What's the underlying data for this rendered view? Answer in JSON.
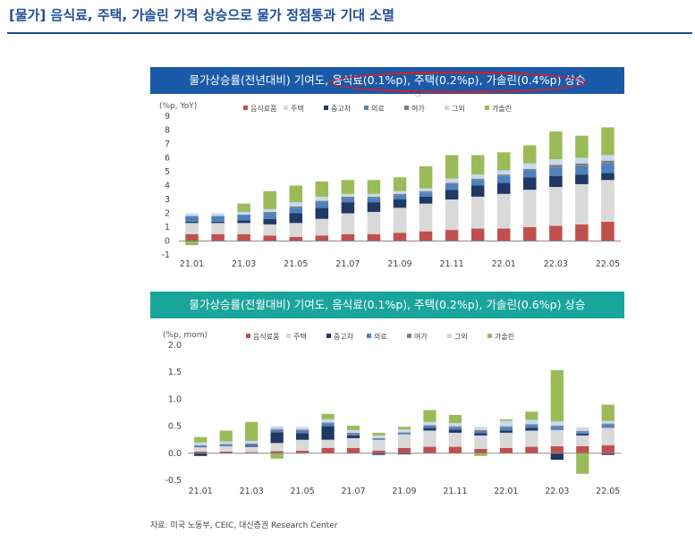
{
  "header": {
    "title": "[물가] 음식료, 주택, 가솔린 가격 상승으로 물가 정점통과 기대 소멸",
    "source": "자료: 미국 노동부, CEIC, 대신증권 Research Center"
  },
  "colors": {
    "title": "#1f4e9a",
    "banner1": "#1b5aa8",
    "banner2": "#1aa59c",
    "highlight": "#e41a1c",
    "series": [
      "#c0504d",
      "#d9d9d9",
      "#1f3864",
      "#4f81bd",
      "#7f7f7f",
      "#c6d9f0",
      "#9bbb59"
    ]
  },
  "chart_data": [
    {
      "type": "bar",
      "stacked": true,
      "banner": "물가상승률(전년대비) 기여도, 음식료(0.1%p), 주택(0.2%p), 가솔린(0.4%p) 상승",
      "ylabel": "(%p, YoY)",
      "ylim": [
        -1,
        9
      ],
      "yticks": [
        -1,
        0,
        1,
        2,
        3,
        4,
        5,
        6,
        7,
        8,
        9
      ],
      "ytick_labels": [
        "-1",
        "0",
        "1",
        "2",
        "3",
        "4",
        "5",
        "6",
        "7",
        "8",
        "9"
      ],
      "categories": [
        "21.01",
        "21.02",
        "21.03",
        "21.04",
        "21.05",
        "21.06",
        "21.07",
        "21.08",
        "21.09",
        "21.10",
        "21.11",
        "21.12",
        "22.01",
        "22.02",
        "22.03",
        "22.04",
        "22.05"
      ],
      "xtick_labels": [
        "21.01",
        "21.03",
        "21.05",
        "21.07",
        "21.09",
        "21.11",
        "22.01",
        "22.03",
        "22.05"
      ],
      "legend": [
        "음식료품",
        "주택",
        "중고차",
        "의료",
        "여가",
        "그외",
        "가솔린"
      ],
      "series": [
        {
          "name": "음식료품",
          "values": [
            0.5,
            0.5,
            0.5,
            0.4,
            0.3,
            0.4,
            0.5,
            0.5,
            0.6,
            0.7,
            0.8,
            0.9,
            0.9,
            1.0,
            1.1,
            1.2,
            1.4
          ]
        },
        {
          "name": "주택",
          "values": [
            0.8,
            0.8,
            0.8,
            0.8,
            1.0,
            1.2,
            1.5,
            1.6,
            1.8,
            2.0,
            2.2,
            2.3,
            2.5,
            2.7,
            2.8,
            2.9,
            3.0
          ]
        },
        {
          "name": "중고차",
          "values": [
            0.1,
            0.1,
            0.2,
            0.4,
            0.7,
            0.8,
            0.8,
            0.7,
            0.6,
            0.5,
            0.7,
            0.8,
            0.8,
            0.9,
            0.8,
            0.7,
            0.5
          ]
        },
        {
          "name": "의료",
          "values": [
            0.4,
            0.4,
            0.4,
            0.4,
            0.4,
            0.4,
            0.3,
            0.3,
            0.3,
            0.3,
            0.4,
            0.4,
            0.5,
            0.5,
            0.6,
            0.6,
            0.7
          ]
        },
        {
          "name": "여가",
          "values": [
            0.0,
            0.0,
            0.0,
            0.1,
            0.1,
            0.1,
            0.1,
            0.1,
            0.1,
            0.1,
            0.1,
            0.1,
            0.1,
            0.1,
            0.2,
            0.2,
            0.2
          ]
        },
        {
          "name": "그외",
          "values": [
            0.2,
            0.2,
            0.2,
            0.2,
            0.3,
            0.3,
            0.2,
            0.2,
            0.2,
            0.2,
            0.3,
            0.3,
            0.3,
            0.4,
            0.4,
            0.4,
            0.4
          ]
        },
        {
          "name": "가솔린",
          "values": [
            -0.3,
            0.0,
            0.6,
            1.3,
            1.2,
            1.1,
            1.0,
            1.0,
            1.0,
            1.6,
            1.7,
            1.4,
            1.3,
            1.3,
            2.0,
            1.6,
            2.0
          ]
        }
      ]
    },
    {
      "type": "bar",
      "stacked": true,
      "banner": "물가상승률(전월대비) 기여도, 음식료(0.1%p), 주택(0.2%p), 가솔린(0.6%p) 상승",
      "ylabel": "(%p, mom)",
      "ylim": [
        -0.5,
        2.0
      ],
      "yticks": [
        -0.5,
        0,
        0.5,
        1.0,
        1.5,
        2.0
      ],
      "ytick_labels": [
        "-0.5",
        "0.0",
        "0.5",
        "1.0",
        "1.5",
        "2.0"
      ],
      "categories": [
        "21.01",
        "21.02",
        "21.03",
        "21.04",
        "21.05",
        "21.06",
        "21.07",
        "21.08",
        "21.09",
        "21.10",
        "21.11",
        "21.12",
        "22.01",
        "22.02",
        "22.03",
        "22.04",
        "22.05"
      ],
      "xtick_labels": [
        "21.01",
        "21.03",
        "21.05",
        "21.07",
        "21.09",
        "21.11",
        "22.01",
        "22.03",
        "22.05"
      ],
      "legend": [
        "음식료품",
        "주택",
        "중고차",
        "의료",
        "여가",
        "그외",
        "가솔린"
      ],
      "series": [
        {
          "name": "음식료품",
          "values": [
            0.03,
            0.03,
            0.02,
            0.04,
            0.05,
            0.1,
            0.1,
            0.05,
            0.1,
            0.12,
            0.12,
            0.08,
            0.1,
            0.12,
            0.13,
            0.13,
            0.15
          ]
        },
        {
          "name": "주택",
          "values": [
            0.08,
            0.1,
            0.1,
            0.15,
            0.2,
            0.15,
            0.18,
            0.2,
            0.25,
            0.3,
            0.26,
            0.25,
            0.28,
            0.3,
            0.3,
            0.2,
            0.32
          ]
        },
        {
          "name": "중고차",
          "values": [
            -0.05,
            0.0,
            0.02,
            0.2,
            0.12,
            0.25,
            0.05,
            -0.03,
            -0.02,
            0.05,
            0.06,
            0.04,
            0.04,
            0.05,
            -0.12,
            0.03,
            -0.03
          ]
        },
        {
          "name": "의료",
          "values": [
            0.03,
            0.03,
            0.03,
            0.04,
            0.05,
            0.05,
            0.03,
            0.02,
            0.03,
            0.04,
            0.04,
            0.04,
            0.06,
            0.05,
            0.06,
            0.03,
            0.06
          ]
        },
        {
          "name": "여가",
          "values": [
            0.01,
            0.01,
            0.01,
            0.02,
            0.02,
            0.02,
            0.02,
            0.01,
            0.01,
            0.01,
            0.02,
            0.02,
            0.02,
            0.02,
            0.02,
            0.02,
            0.02
          ]
        },
        {
          "name": "그외",
          "values": [
            0.05,
            0.05,
            0.05,
            0.05,
            0.05,
            0.06,
            0.05,
            0.05,
            0.05,
            0.06,
            0.06,
            0.06,
            0.1,
            0.08,
            0.08,
            0.07,
            0.05
          ]
        },
        {
          "name": "가솔린",
          "values": [
            0.1,
            0.2,
            0.35,
            -0.1,
            0.0,
            0.1,
            0.08,
            0.05,
            0.05,
            0.22,
            0.15,
            -0.05,
            0.03,
            0.15,
            0.95,
            -0.38,
            0.3
          ]
        }
      ]
    }
  ]
}
